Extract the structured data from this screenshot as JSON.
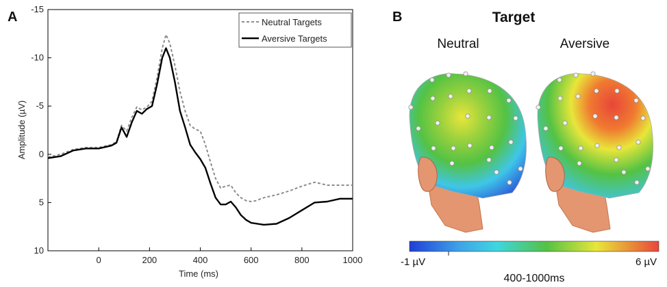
{
  "panels": {
    "a_label": "A",
    "b_label": "B"
  },
  "chart_data": {
    "type": "line",
    "title": "",
    "xlabel": "Time (ms)",
    "ylabel": "Amplitude (µV)",
    "xlim": [
      -200,
      1000
    ],
    "ylim": [
      10,
      -15
    ],
    "y_axis_inverted": true,
    "x_ticks": [
      "0",
      "200",
      "400",
      "600",
      "800",
      "1000"
    ],
    "x_tick_values": [
      0,
      200,
      400,
      600,
      800,
      1000
    ],
    "y_ticks": [
      "-15",
      "-10",
      "-5",
      "0",
      "5",
      "10"
    ],
    "y_tick_values": [
      -15,
      -10,
      -5,
      0,
      5,
      10
    ],
    "grid": false,
    "legend_placement": "top-right",
    "series": [
      {
        "name": "Neutral Targets",
        "color": "#8c8c8c",
        "style": "dashed",
        "x": [
          -200,
          -150,
          -100,
          -50,
          0,
          50,
          70,
          90,
          110,
          130,
          150,
          170,
          190,
          210,
          230,
          250,
          265,
          280,
          300,
          320,
          340,
          360,
          380,
          400,
          420,
          440,
          460,
          480,
          500,
          520,
          540,
          560,
          580,
          600,
          620,
          650,
          700,
          750,
          800,
          850,
          900,
          950,
          1000
        ],
        "values": [
          0.3,
          0.0,
          -0.5,
          -0.7,
          -0.7,
          -1.0,
          -1.3,
          -3.0,
          -2.4,
          -3.8,
          -4.9,
          -4.6,
          -4.9,
          -5.5,
          -8.0,
          -11.0,
          -12.4,
          -11.5,
          -9.2,
          -6.5,
          -4.5,
          -3.0,
          -2.6,
          -2.4,
          -1.0,
          0.8,
          2.5,
          3.5,
          3.3,
          3.2,
          4.0,
          4.5,
          4.8,
          4.9,
          4.8,
          4.5,
          4.2,
          3.8,
          3.3,
          2.9,
          3.2,
          3.2,
          3.2
        ]
      },
      {
        "name": "Aversive Targets",
        "color": "#000000",
        "style": "solid",
        "x": [
          -200,
          -150,
          -100,
          -50,
          0,
          50,
          70,
          90,
          110,
          130,
          150,
          170,
          190,
          210,
          230,
          250,
          265,
          280,
          300,
          320,
          340,
          360,
          380,
          400,
          420,
          440,
          460,
          480,
          500,
          520,
          540,
          560,
          580,
          600,
          650,
          700,
          750,
          800,
          850,
          900,
          950,
          1000
        ],
        "values": [
          0.4,
          0.2,
          -0.4,
          -0.6,
          -0.6,
          -0.9,
          -1.2,
          -2.8,
          -1.8,
          -3.3,
          -4.5,
          -4.2,
          -4.7,
          -5.0,
          -7.3,
          -10.0,
          -11.0,
          -10.0,
          -7.5,
          -4.5,
          -2.8,
          -1.0,
          -0.2,
          0.5,
          1.4,
          3.0,
          4.5,
          5.2,
          5.2,
          4.9,
          5.5,
          6.3,
          6.8,
          7.1,
          7.3,
          7.2,
          6.6,
          5.8,
          5.0,
          4.9,
          4.6,
          4.6
        ]
      }
    ]
  },
  "topo": {
    "title": "Target",
    "conditions": [
      "Neutral",
      "Aversive"
    ],
    "colorbar_min": "-1 µV",
    "colorbar_max": "6 µV",
    "time_window": "400-1000ms",
    "colors": {
      "blue": "#2b59d9",
      "cyan": "#3fc6e8",
      "green": "#54c244",
      "yellow": "#e8e63a",
      "red": "#e8463a",
      "skin": "#e39670"
    }
  }
}
